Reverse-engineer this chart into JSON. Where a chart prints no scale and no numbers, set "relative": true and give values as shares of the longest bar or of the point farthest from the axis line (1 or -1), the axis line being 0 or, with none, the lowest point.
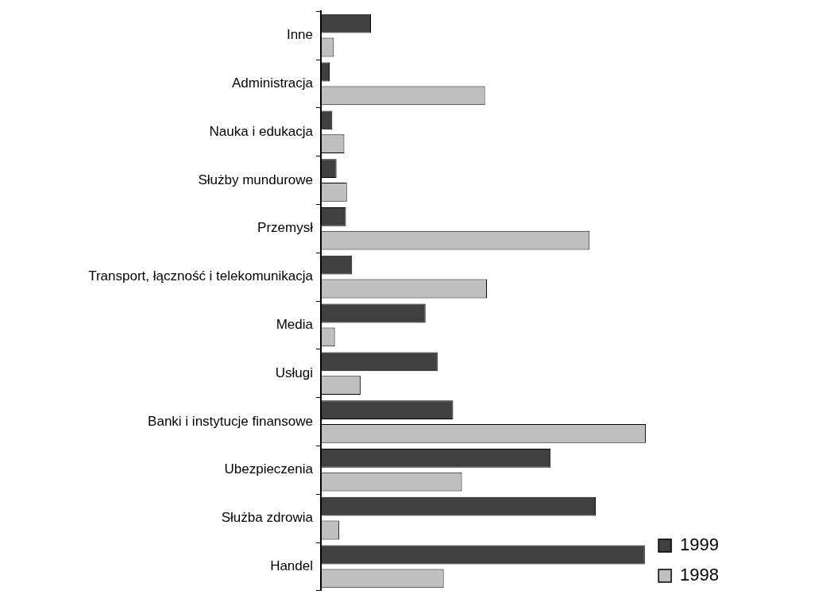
{
  "chart_data": {
    "type": "bar",
    "orientation": "horizontal",
    "relative": true,
    "legend": "bottom right",
    "categories": [
      "Inne",
      "Administracja",
      "Nauka i edukacja",
      "Służby mundurowe",
      "Przemysł",
      "Transport, łączność i telekomunikacja",
      "Media",
      "Usługi",
      "Banki i instytucje finansowe",
      "Ubezpieczenia",
      "Służba zdrowia",
      "Handel"
    ],
    "series": [
      {
        "name": "1999",
        "color": "#404040",
        "values": [
          0.154,
          0.027,
          0.035,
          0.048,
          0.077,
          0.096,
          0.322,
          0.359,
          0.407,
          0.707,
          0.846,
          0.997
        ]
      },
      {
        "name": "1998",
        "color": "#c0c0c0",
        "values": [
          0.04,
          0.505,
          0.072,
          0.08,
          0.827,
          0.511,
          0.043,
          0.122,
          1,
          0.434,
          0.056,
          0.378
        ]
      }
    ]
  }
}
